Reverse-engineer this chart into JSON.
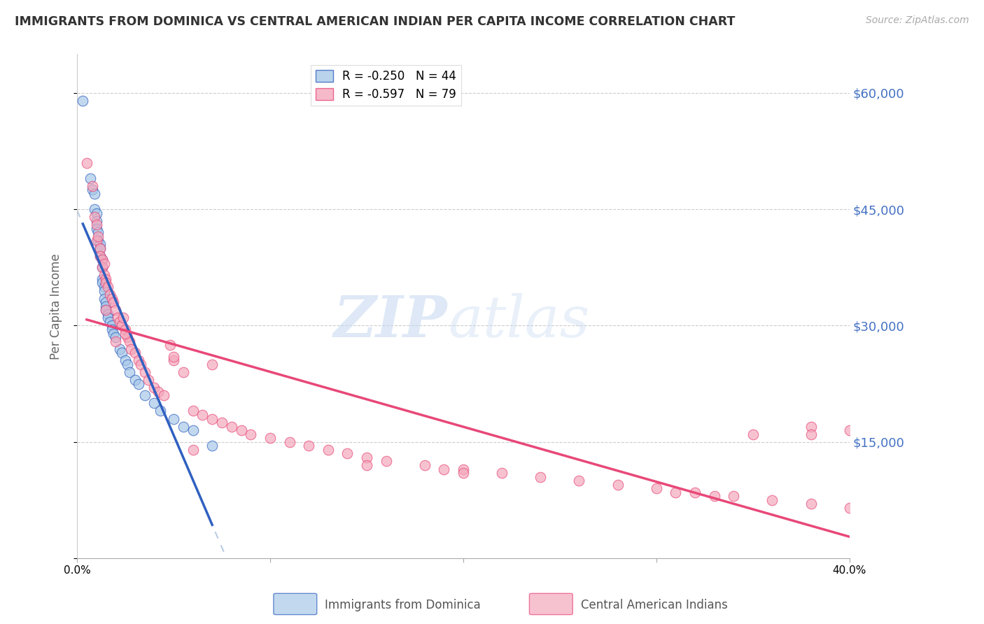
{
  "title": "IMMIGRANTS FROM DOMINICA VS CENTRAL AMERICAN INDIAN PER CAPITA INCOME CORRELATION CHART",
  "source": "Source: ZipAtlas.com",
  "ylabel": "Per Capita Income",
  "yticks": [
    0,
    15000,
    30000,
    45000,
    60000
  ],
  "ytick_labels": [
    "",
    "$15,000",
    "$30,000",
    "$45,000",
    "$60,000"
  ],
  "xlim": [
    0.0,
    0.4
  ],
  "ylim": [
    0,
    65000
  ],
  "series1_label": "Immigrants from Dominica",
  "series2_label": "Central American Indians",
  "series1_color": "#a8c8e8",
  "series2_color": "#f4a8bc",
  "trendline1_color": "#3060c0",
  "trendline2_color": "#e84878",
  "trendline_dashed_color": "#b8cce0",
  "legend_label1": "R = -0.250   N = 44",
  "legend_label2": "R = -0.597   N = 79",
  "series1_x": [
    0.003,
    0.007,
    0.008,
    0.009,
    0.009,
    0.01,
    0.01,
    0.01,
    0.011,
    0.011,
    0.012,
    0.012,
    0.012,
    0.013,
    0.013,
    0.013,
    0.013,
    0.014,
    0.014,
    0.014,
    0.015,
    0.015,
    0.015,
    0.016,
    0.016,
    0.017,
    0.018,
    0.018,
    0.019,
    0.02,
    0.022,
    0.023,
    0.025,
    0.026,
    0.027,
    0.03,
    0.032,
    0.035,
    0.04,
    0.043,
    0.05,
    0.055,
    0.06,
    0.07
  ],
  "series1_y": [
    59000,
    49000,
    47500,
    47000,
    45000,
    44500,
    43500,
    42500,
    42000,
    41000,
    40500,
    40000,
    39000,
    38500,
    37500,
    36000,
    35500,
    35000,
    34500,
    33500,
    33000,
    32500,
    32000,
    31500,
    31000,
    30500,
    30000,
    29500,
    29000,
    28500,
    27000,
    26500,
    25500,
    25000,
    24000,
    23000,
    22500,
    21000,
    20000,
    19000,
    18000,
    17000,
    16500,
    14500
  ],
  "series2_x": [
    0.005,
    0.008,
    0.009,
    0.01,
    0.01,
    0.011,
    0.012,
    0.012,
    0.013,
    0.013,
    0.014,
    0.014,
    0.015,
    0.015,
    0.016,
    0.017,
    0.018,
    0.019,
    0.02,
    0.021,
    0.022,
    0.023,
    0.024,
    0.025,
    0.026,
    0.027,
    0.028,
    0.03,
    0.032,
    0.033,
    0.035,
    0.037,
    0.04,
    0.042,
    0.045,
    0.048,
    0.05,
    0.055,
    0.06,
    0.065,
    0.07,
    0.075,
    0.08,
    0.085,
    0.09,
    0.1,
    0.11,
    0.12,
    0.13,
    0.14,
    0.15,
    0.16,
    0.18,
    0.2,
    0.22,
    0.24,
    0.26,
    0.28,
    0.3,
    0.32,
    0.34,
    0.36,
    0.38,
    0.4,
    0.05,
    0.07,
    0.15,
    0.31,
    0.33,
    0.35,
    0.38,
    0.4,
    0.19,
    0.2,
    0.38,
    0.06,
    0.025,
    0.02,
    0.015
  ],
  "series2_y": [
    51000,
    48000,
    44000,
    43000,
    41000,
    41500,
    40000,
    39000,
    38500,
    37500,
    38000,
    36500,
    36000,
    35500,
    35000,
    34000,
    33500,
    33000,
    32000,
    31000,
    30500,
    30000,
    31000,
    29500,
    28500,
    28000,
    27000,
    26500,
    25500,
    25000,
    24000,
    23000,
    22000,
    21500,
    21000,
    27500,
    25500,
    24000,
    19000,
    18500,
    18000,
    17500,
    17000,
    16500,
    16000,
    15500,
    15000,
    14500,
    14000,
    13500,
    13000,
    12500,
    12000,
    11500,
    11000,
    10500,
    10000,
    9500,
    9000,
    8500,
    8000,
    7500,
    7000,
    6500,
    26000,
    25000,
    12000,
    8500,
    8000,
    16000,
    17000,
    16500,
    11500,
    11000,
    16000,
    14000,
    29000,
    28000,
    32000
  ]
}
